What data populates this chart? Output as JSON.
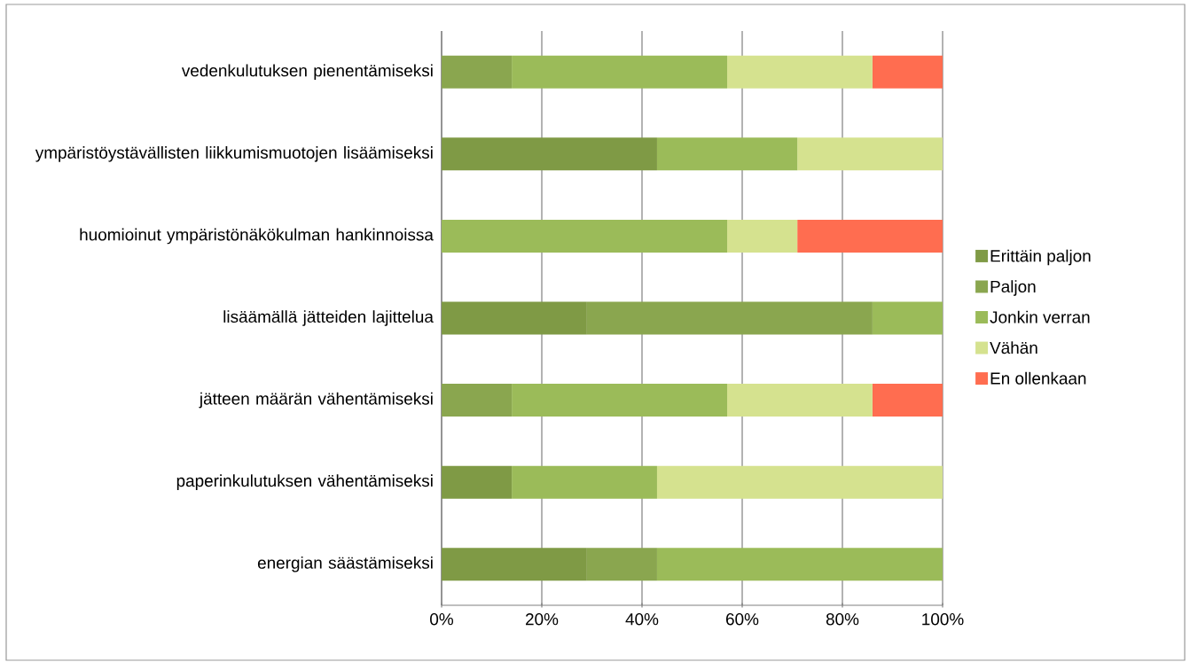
{
  "chart_data": {
    "type": "bar",
    "orientation": "horizontal",
    "stacked": true,
    "categories": [
      "vedenkulutuksen pienentämiseksi",
      "ympäristöystävällisten liikkumismuotojen lisäämiseksi",
      "huomioinut ympäristönäkökulman hankinnoissa",
      "lisäämällä jätteiden lajittelua",
      "jätteen määrän vähentämiseksi",
      "paperinkulutuksen vähentämiseksi",
      "energian säästämiseksi"
    ],
    "series": [
      {
        "name": "Erittäin paljon",
        "color": "#7f9a45",
        "values": [
          0,
          43,
          0,
          29,
          0,
          14,
          29
        ]
      },
      {
        "name": "Paljon",
        "color": "#8aa64f",
        "values": [
          14,
          0,
          0,
          57,
          14,
          0,
          14
        ]
      },
      {
        "name": "Jonkin verran",
        "color": "#9bbb59",
        "values": [
          43,
          28,
          57,
          14,
          43,
          29,
          57
        ]
      },
      {
        "name": "Vähän",
        "color": "#d5e28f",
        "values": [
          29,
          29,
          14,
          0,
          29,
          57,
          0
        ]
      },
      {
        "name": "En ollenkaan",
        "color": "#ff6d50",
        "values": [
          14,
          0,
          29,
          0,
          14,
          0,
          0
        ]
      }
    ],
    "xlim": [
      0,
      100
    ],
    "xticks": [
      {
        "value": 0,
        "label": "0%"
      },
      {
        "value": 20,
        "label": "20%"
      },
      {
        "value": 40,
        "label": "40%"
      },
      {
        "value": 60,
        "label": "60%"
      },
      {
        "value": 80,
        "label": "80%"
      },
      {
        "value": 100,
        "label": "100%"
      }
    ],
    "grid": "x",
    "legend": "right"
  }
}
